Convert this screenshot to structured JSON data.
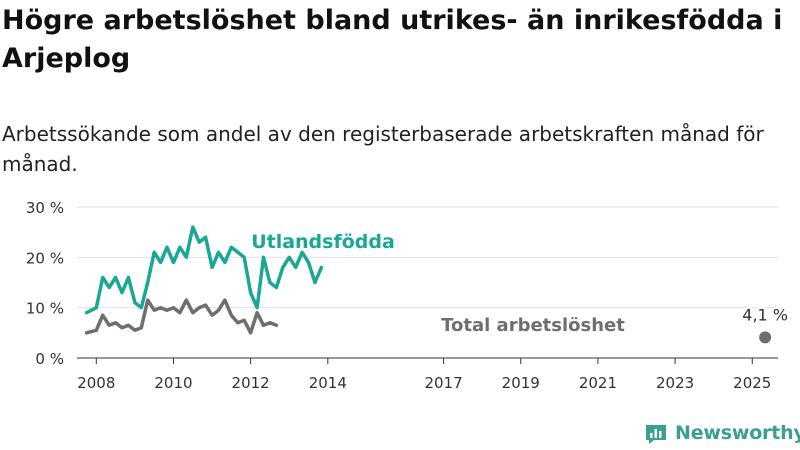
{
  "title": "Högre arbetslöshet bland utrikes- än inrikesfödda i Arjeplog",
  "subtitle": "Arbetssökande som andel av den registerbaserade arbetskraften månad för månad.",
  "brand": {
    "name": "Newsworthy",
    "icon": "newsworthy-logo-icon",
    "color": "#3ba090"
  },
  "chart_data": {
    "type": "line",
    "title": "",
    "xlabel": "",
    "ylabel": "",
    "xlim": [
      "2007-07",
      "2025-09"
    ],
    "ylim": [
      0,
      30
    ],
    "y_ticks": [
      0,
      10,
      20,
      30
    ],
    "y_tick_labels": [
      "0 %",
      "10 %",
      "20 %",
      "30 %"
    ],
    "x_ticks": [
      "2008-01",
      "2010-01",
      "2012-01",
      "2014-01",
      "2017-01",
      "2019-01",
      "2021-01",
      "2023-01",
      "2025-01"
    ],
    "x_tick_labels": [
      "2008",
      "2010",
      "2012",
      "2014",
      "2017",
      "2019",
      "2021",
      "2023",
      "2025"
    ],
    "grid": true,
    "legend": "inline labels",
    "series": [
      {
        "name": "Utlandsfödda",
        "color": "#1aa796",
        "points": [
          [
            "2007-10",
            9
          ],
          [
            "2008-01",
            10
          ],
          [
            "2008-03",
            16
          ],
          [
            "2008-05",
            14
          ],
          [
            "2008-07",
            16
          ],
          [
            "2008-09",
            13
          ],
          [
            "2008-11",
            16
          ],
          [
            "2009-01",
            11
          ],
          [
            "2009-03",
            10
          ],
          [
            "2009-05",
            15
          ],
          [
            "2009-07",
            21
          ],
          [
            "2009-09",
            19
          ],
          [
            "2009-11",
            22
          ],
          [
            "2010-01",
            19
          ],
          [
            "2010-03",
            22
          ],
          [
            "2010-05",
            20
          ],
          [
            "2010-07",
            26
          ],
          [
            "2010-09",
            23
          ],
          [
            "2010-11",
            24
          ],
          [
            "2011-01",
            18
          ],
          [
            "2011-03",
            21
          ],
          [
            "2011-05",
            19
          ],
          [
            "2011-07",
            22
          ],
          [
            "2011-09",
            21
          ],
          [
            "2011-11",
            20
          ],
          [
            "2012-01",
            13
          ],
          [
            "2012-03",
            10
          ],
          [
            "2012-05",
            20
          ],
          [
            "2012-07",
            15
          ],
          [
            "2012-09",
            14
          ],
          [
            "2012-11",
            18
          ],
          [
            "2013-01",
            20
          ],
          [
            "2013-03",
            18
          ],
          [
            "2013-05",
            21
          ],
          [
            "2013-07",
            19
          ],
          [
            "2013-09",
            15
          ],
          [
            "2013-11",
            18
          ]
        ]
      },
      {
        "name": "Total arbetslöshet",
        "color": "#6e6e6e",
        "points": [
          [
            "2007-10",
            5
          ],
          [
            "2008-01",
            5.5
          ],
          [
            "2008-03",
            8.5
          ],
          [
            "2008-05",
            6.5
          ],
          [
            "2008-07",
            7
          ],
          [
            "2008-09",
            6
          ],
          [
            "2008-11",
            6.5
          ],
          [
            "2009-01",
            5.5
          ],
          [
            "2009-03",
            6
          ],
          [
            "2009-05",
            11.5
          ],
          [
            "2009-07",
            9.5
          ],
          [
            "2009-09",
            10
          ],
          [
            "2009-11",
            9.5
          ],
          [
            "2010-01",
            10
          ],
          [
            "2010-03",
            9
          ],
          [
            "2010-05",
            11.5
          ],
          [
            "2010-07",
            9
          ],
          [
            "2010-09",
            10
          ],
          [
            "2010-11",
            10.5
          ],
          [
            "2011-01",
            8.5
          ],
          [
            "2011-03",
            9.5
          ],
          [
            "2011-05",
            11.5
          ],
          [
            "2011-07",
            8.5
          ],
          [
            "2011-09",
            7
          ],
          [
            "2011-11",
            7.5
          ],
          [
            "2012-01",
            5
          ],
          [
            "2012-03",
            9
          ],
          [
            "2012-05",
            6.5
          ],
          [
            "2012-07",
            7
          ],
          [
            "2012-09",
            6.5
          ]
        ]
      }
    ],
    "annotations": [
      {
        "text": "4,1 %",
        "x": "2025-05",
        "y": 4.1
      }
    ]
  }
}
